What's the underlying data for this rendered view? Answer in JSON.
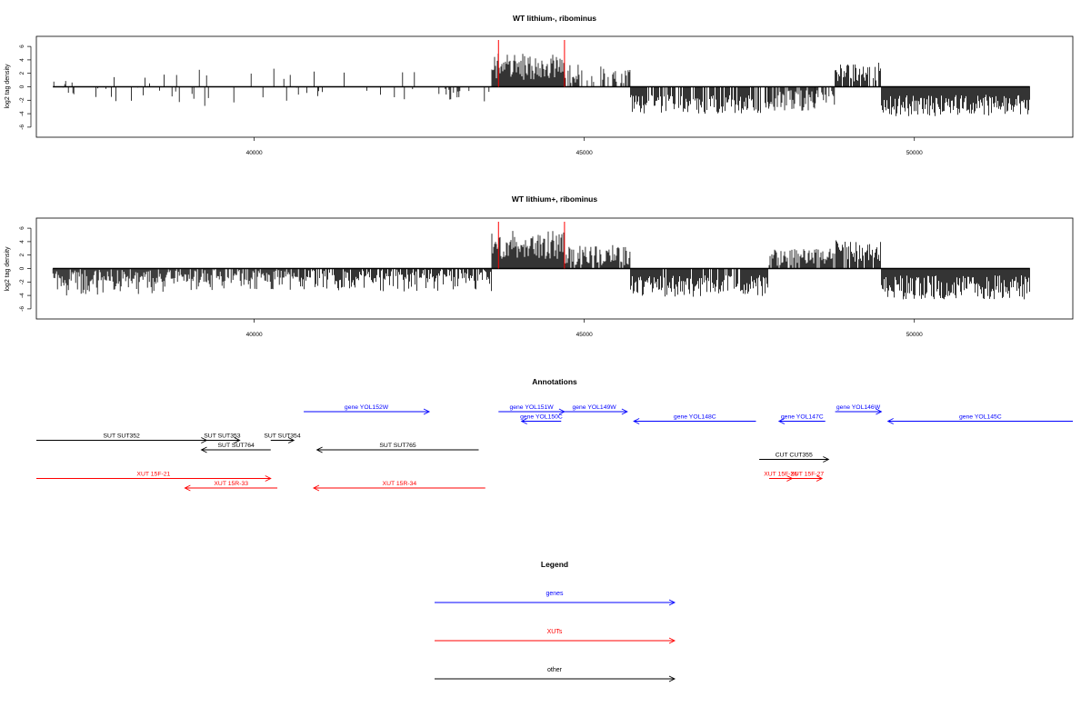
{
  "chart_data": [
    {
      "type": "bar",
      "title": "WT lithium-, ribominus",
      "ylabel": "log2 tag density",
      "xlim": [
        36700,
        52400
      ],
      "ylim": [
        -7.5,
        7.5
      ],
      "yticks": [
        -6,
        -4,
        -2,
        0,
        2,
        4,
        6
      ],
      "xticks": [
        40000,
        45000,
        50000
      ],
      "genome_start": 36950,
      "genome_end": 51750,
      "region_markers": [
        43700,
        44700
      ],
      "segments": [
        {
          "from": 36950,
          "to": 37600,
          "mean": 0,
          "amp": 2,
          "density": 0.2,
          "bias": 0.4
        },
        {
          "from": 37600,
          "to": 38700,
          "mean": 0,
          "amp": 2.5,
          "density": 0.16,
          "bias": 0.5
        },
        {
          "from": 38700,
          "to": 40700,
          "mean": 0,
          "amp": 3,
          "density": 0.1,
          "bias": 0.5
        },
        {
          "from": 40700,
          "to": 42000,
          "mean": 0,
          "amp": 2.5,
          "density": 0.1,
          "bias": 0.4
        },
        {
          "from": 42000,
          "to": 43600,
          "mean": 0,
          "amp": 2.2,
          "density": 0.12,
          "bias": 0.2
        },
        {
          "from": 43600,
          "to": 44700,
          "mean": 3,
          "amp": 2,
          "density": 1,
          "bias": 1
        },
        {
          "from": 44700,
          "to": 45700,
          "mean": 2,
          "amp": 1.5,
          "density": 0.5,
          "bias": 1
        },
        {
          "from": 45700,
          "to": 47800,
          "mean": -2.6,
          "amp": 1.4,
          "density": 0.7,
          "bias": 0
        },
        {
          "from": 47800,
          "to": 48500,
          "mean": -2,
          "amp": 1.6,
          "density": 0.8,
          "bias": 0.3
        },
        {
          "from": 48500,
          "to": 48800,
          "mean": -1.5,
          "amp": 1.2,
          "density": 0.3,
          "bias": 0.2
        },
        {
          "from": 48800,
          "to": 49500,
          "mean": 2.2,
          "amp": 1.4,
          "density": 0.8,
          "bias": 1
        },
        {
          "from": 49500,
          "to": 51750,
          "mean": -2.8,
          "amp": 1.6,
          "density": 1,
          "bias": 0
        }
      ]
    },
    {
      "type": "bar",
      "title": "WT lithium+, ribominus",
      "ylabel": "log2 tag density",
      "xlim": [
        36700,
        52400
      ],
      "ylim": [
        -7.5,
        7.5
      ],
      "yticks": [
        -6,
        -4,
        -2,
        0,
        2,
        4,
        6
      ],
      "xticks": [
        40000,
        45000,
        50000
      ],
      "genome_start": 36950,
      "genome_end": 51750,
      "region_markers": [
        43700,
        44700
      ],
      "segments": [
        {
          "from": 36950,
          "to": 38700,
          "mean": -1,
          "amp": 3,
          "density": 1,
          "bias": 0.45
        },
        {
          "from": 38700,
          "to": 40700,
          "mean": -0.6,
          "amp": 2.6,
          "density": 0.85,
          "bias": 0.4
        },
        {
          "from": 40700,
          "to": 43600,
          "mean": -0.8,
          "amp": 2.6,
          "density": 0.9,
          "bias": 0.4
        },
        {
          "from": 43600,
          "to": 44700,
          "mean": 3.6,
          "amp": 2.2,
          "density": 1,
          "bias": 1
        },
        {
          "from": 44700,
          "to": 45700,
          "mean": 2,
          "amp": 1.5,
          "density": 0.9,
          "bias": 1
        },
        {
          "from": 45700,
          "to": 47800,
          "mean": -2.6,
          "amp": 1.6,
          "density": 0.9,
          "bias": 0
        },
        {
          "from": 47800,
          "to": 48800,
          "mean": 1.6,
          "amp": 1.4,
          "density": 0.8,
          "bias": 0.8
        },
        {
          "from": 48800,
          "to": 49500,
          "mean": 2.6,
          "amp": 1.6,
          "density": 0.9,
          "bias": 1
        },
        {
          "from": 49500,
          "to": 51750,
          "mean": -2.8,
          "amp": 1.8,
          "density": 1,
          "bias": 0
        }
      ]
    }
  ],
  "annotations": {
    "title": "Annotations",
    "xlim": [
      36700,
      52400
    ],
    "items": [
      {
        "label": "gene YOL152W",
        "start": 40750,
        "end": 42650,
        "strand": "+",
        "row": 0,
        "color": "#0000ff"
      },
      {
        "label": "gene YOL151W",
        "start": 43700,
        "end": 44700,
        "strand": "+",
        "row": 0,
        "color": "#0000ff"
      },
      {
        "label": "gene YOL150C",
        "start": 44050,
        "end": 44650,
        "strand": "-",
        "row": 1,
        "color": "#0000ff"
      },
      {
        "label": "gene YOL149W",
        "start": 44650,
        "end": 45650,
        "strand": "+",
        "row": 0,
        "color": "#0000ff"
      },
      {
        "label": "gene YOL148C",
        "start": 45750,
        "end": 47600,
        "strand": "-",
        "row": 1,
        "color": "#0000ff"
      },
      {
        "label": "gene YOL147C",
        "start": 47950,
        "end": 48650,
        "strand": "-",
        "row": 1,
        "color": "#0000ff"
      },
      {
        "label": "gene YOL146W",
        "start": 48800,
        "end": 49500,
        "strand": "+",
        "row": 0,
        "color": "#0000ff"
      },
      {
        "label": "gene YOL145C",
        "start": 49600,
        "end": 52400,
        "strand": "-",
        "row": 1,
        "color": "#0000ff"
      },
      {
        "label": "SUT SUT352",
        "start": 36700,
        "end": 39280,
        "strand": "+",
        "row": 3,
        "color": "#000000"
      },
      {
        "label": "SUT SUT353",
        "start": 39250,
        "end": 39780,
        "strand": "+",
        "row": 3,
        "color": "#000000"
      },
      {
        "label": "SUT SUT764",
        "start": 39200,
        "end": 40250,
        "strand": "-",
        "row": 4,
        "color": "#000000"
      },
      {
        "label": "SUT SUT354",
        "start": 40250,
        "end": 40600,
        "strand": "+",
        "row": 3,
        "color": "#000000"
      },
      {
        "label": "SUT SUT765",
        "start": 40950,
        "end": 43400,
        "strand": "-",
        "row": 4,
        "color": "#000000"
      },
      {
        "label": "CUT CUT355",
        "start": 47650,
        "end": 48700,
        "strand": "+",
        "row": 5,
        "color": "#000000"
      },
      {
        "label": "XUT 15F-21",
        "start": 36700,
        "end": 40250,
        "strand": "+",
        "row": 7,
        "color": "#ff0000"
      },
      {
        "label": "XUT 15R-33",
        "start": 38950,
        "end": 40350,
        "strand": "-",
        "row": 8,
        "color": "#ff0000"
      },
      {
        "label": "XUT 15R-34",
        "start": 40900,
        "end": 43500,
        "strand": "-",
        "row": 8,
        "color": "#ff0000"
      },
      {
        "label": "XUT 15F-26",
        "start": 47800,
        "end": 48150,
        "strand": "+",
        "row": 7,
        "color": "#ff0000"
      },
      {
        "label": "XUT 15F-27",
        "start": 48150,
        "end": 48600,
        "strand": "+",
        "row": 7,
        "color": "#ff0000"
      }
    ]
  },
  "legend": {
    "title": "Legend",
    "items": [
      {
        "label": "genes",
        "color": "#0000ff"
      },
      {
        "label": "XUTs",
        "color": "#ff0000"
      },
      {
        "label": "other",
        "color": "#000000"
      }
    ]
  }
}
